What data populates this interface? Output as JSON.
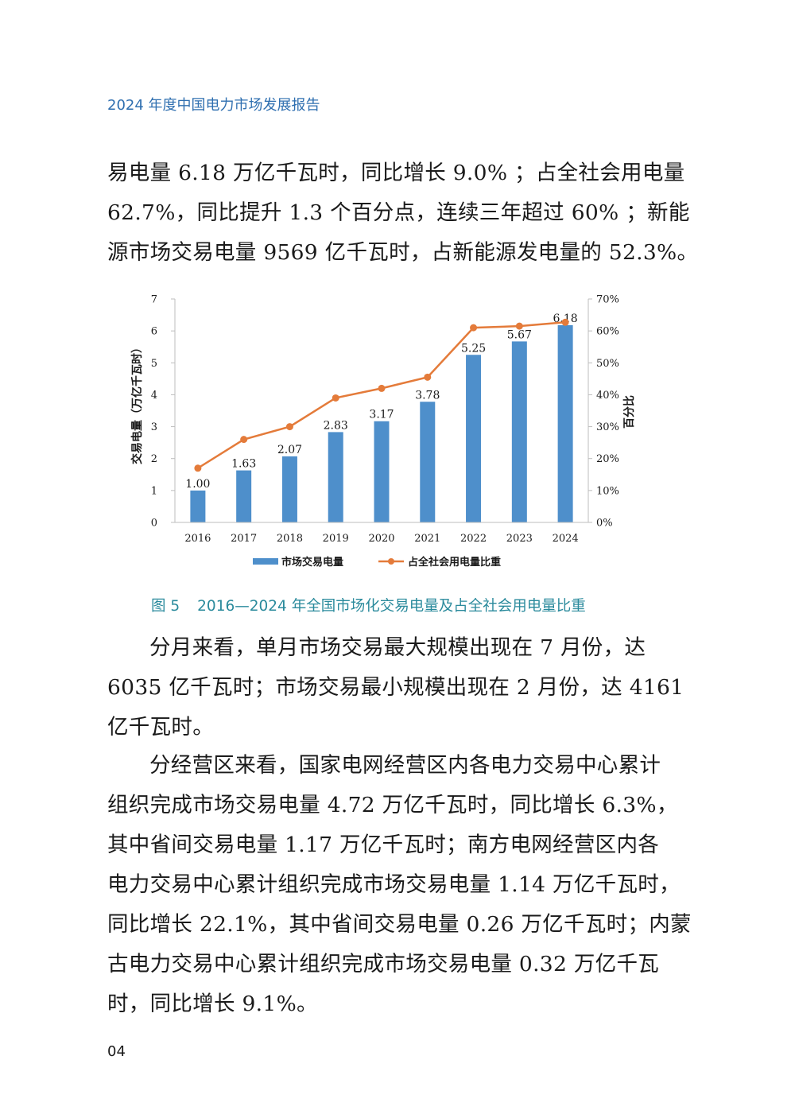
{
  "header": {
    "title": "2024 年度中国电力市场发展报告"
  },
  "paragraph_top": {
    "lines": [
      "易电量 6.18 万亿千瓦时，同比增长 9.0% ；占全社会用电量",
      "62.7%，同比提升 1.3 个百分点，连续三年超过 60% ；新能",
      "源市场交易电量 9569 亿千瓦时，占新能源发电量的 52.3%。"
    ]
  },
  "chart_data": {
    "type": "bar",
    "categories": [
      "2016",
      "2017",
      "2018",
      "2019",
      "2020",
      "2021",
      "2022",
      "2023",
      "2024"
    ],
    "series": [
      {
        "name": "市场交易电量",
        "type": "bar",
        "axis": "left",
        "values": [
          1.0,
          1.63,
          2.07,
          2.83,
          3.17,
          3.78,
          5.25,
          5.67,
          6.18
        ],
        "color": "#4e8fcb"
      },
      {
        "name": "占全社会用电量比重",
        "type": "line",
        "axis": "right",
        "values": [
          17,
          26,
          30,
          39,
          42,
          45.5,
          61,
          61.5,
          62.7
        ],
        "color": "#e47b3a"
      }
    ],
    "data_labels": [
      "1.00",
      "1.63",
      "2.07",
      "2.83",
      "3.17",
      "3.78",
      "5.25",
      "5.67",
      "6.18"
    ],
    "ylabel": "交易电量（万亿千瓦时）",
    "ylabel_right": "百分比",
    "ylim": [
      0,
      7
    ],
    "ylim_right": [
      0,
      70
    ],
    "yticks": [
      "0",
      "1",
      "2",
      "3",
      "4",
      "5",
      "6",
      "7"
    ],
    "yticks_right": [
      "0%",
      "10%",
      "20%",
      "30%",
      "40%",
      "50%",
      "60%",
      "70%"
    ],
    "grid": false,
    "legend_position": "bottom"
  },
  "figure": {
    "number": "图 5",
    "caption": "2016—2024 年全国市场化交易电量及占全社会用电量比重"
  },
  "paragraph_month": {
    "lines": [
      "分月来看，单月市场交易最大规模出现在 7 月份，达",
      "6035 亿千瓦时；市场交易最小规模出现在 2 月份，达 4161",
      "亿千瓦时。"
    ]
  },
  "paragraph_region": {
    "lines": [
      "分经营区来看，国家电网经营区内各电力交易中心累计",
      "组织完成市场交易电量 4.72 万亿千瓦时，同比增长 6.3%，",
      "其中省间交易电量 1.17 万亿千瓦时；南方电网经营区内各",
      "电力交易中心累计组织完成市场交易电量 1.14 万亿千瓦时，",
      "同比增长 22.1%，其中省间交易电量 0.26 万亿千瓦时；内蒙",
      "古电力交易中心累计组织完成市场交易电量 0.32 万亿千瓦",
      "时，同比增长 9.1%。"
    ]
  },
  "footer": {
    "page_number": "04"
  }
}
